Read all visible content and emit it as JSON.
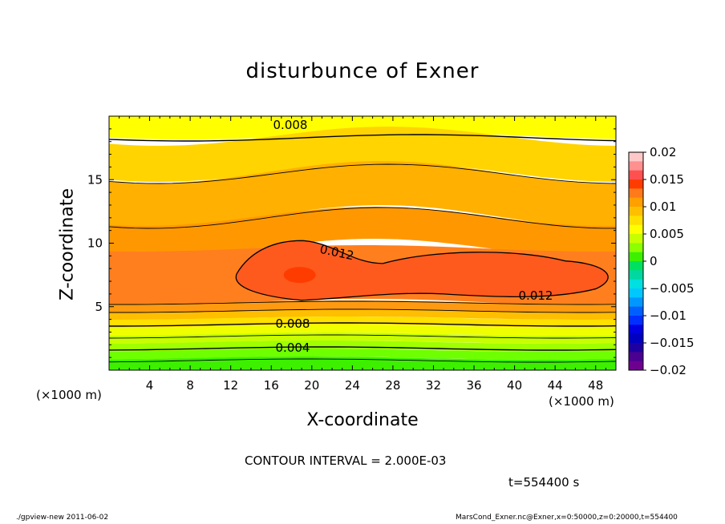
{
  "chart_data": {
    "type": "contour",
    "title": "disturbunce of Exner",
    "xlabel": "X-coordinate",
    "ylabel": "Z-coordinate",
    "x_unit": "(×1000 m)",
    "y_unit": "(×1000 m)",
    "xlim": [
      0,
      50
    ],
    "ylim": [
      0,
      20
    ],
    "x_ticks": [
      4,
      8,
      12,
      16,
      20,
      24,
      28,
      32,
      36,
      40,
      44,
      48
    ],
    "y_ticks": [
      5,
      10,
      15
    ],
    "contour_interval": "CONTOUR INTERVAL = 2.000E-03",
    "time": "t=554400 s",
    "contour_labels": [
      "0.008",
      "0.012",
      "0.012",
      "0.008",
      "0.004"
    ],
    "colorbar": {
      "ticks": [
        "0.02",
        "0.015",
        "0.01",
        "0.005",
        "0",
        "−0.005",
        "−0.01",
        "−0.015",
        "−0.02"
      ],
      "range": [
        -0.02,
        0.02
      ]
    }
  },
  "footer": {
    "left": "./gpview-new   2011-06-02",
    "right": "MarsCond_Exner.nc@Exner,x=0:50000,z=0:20000,t=554400"
  }
}
